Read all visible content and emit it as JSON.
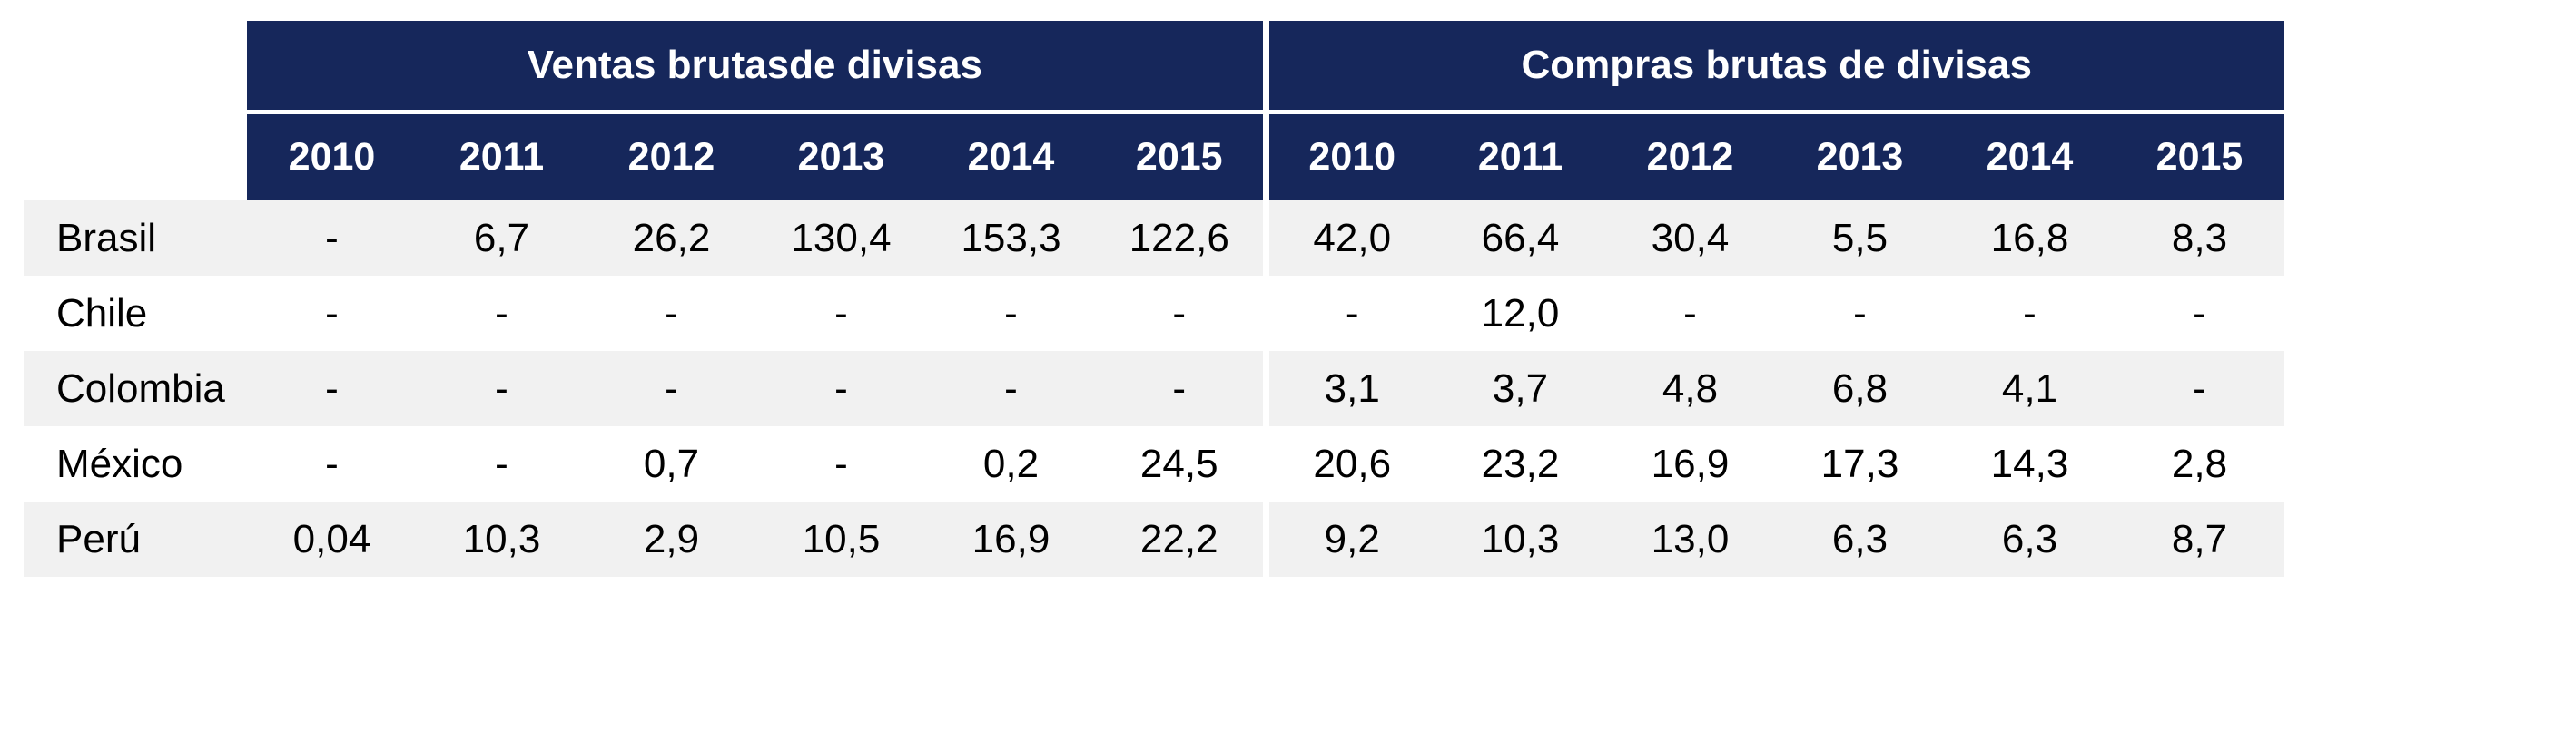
{
  "chart_data": {
    "type": "table",
    "groups": [
      {
        "label": "Ventas brutasde divisas",
        "years": [
          "2010",
          "2011",
          "2012",
          "2013",
          "2014",
          "2015"
        ]
      },
      {
        "label": "Compras brutas de divisas",
        "years": [
          "2010",
          "2011",
          "2012",
          "2013",
          "2014",
          "2015"
        ]
      }
    ],
    "rows": [
      {
        "country": "Brasil",
        "ventas": [
          "-",
          "6,7",
          "26,2",
          "130,4",
          "153,3",
          "122,6"
        ],
        "compras": [
          "42,0",
          "66,4",
          "30,4",
          "5,5",
          "16,8",
          "8,3"
        ]
      },
      {
        "country": "Chile",
        "ventas": [
          "-",
          "-",
          "-",
          "-",
          "-",
          "-"
        ],
        "compras": [
          "-",
          "12,0",
          "-",
          "-",
          "-",
          "-"
        ]
      },
      {
        "country": "Colombia",
        "ventas": [
          "-",
          "-",
          "-",
          "-",
          "-",
          "-"
        ],
        "compras": [
          "3,1",
          "3,7",
          "4,8",
          "6,8",
          "4,1",
          "-"
        ]
      },
      {
        "country": "México",
        "ventas": [
          "-",
          "-",
          "0,7",
          "-",
          "0,2",
          "24,5"
        ],
        "compras": [
          "20,6",
          "23,2",
          "16,9",
          "17,3",
          "14,3",
          "2,8"
        ]
      },
      {
        "country": "Perú",
        "ventas": [
          "0,04",
          "10,3",
          "2,9",
          "10,5",
          "16,9",
          "22,2"
        ],
        "compras": [
          "9,2",
          "10,3",
          "13,0",
          "6,3",
          "6,3",
          "8,7"
        ]
      }
    ],
    "colors": {
      "header_bg": "#16275B",
      "header_text": "#FFFFFF",
      "stripe_bg": "#F1F1F1",
      "body_text": "#000000",
      "page_bg": "#FFFFFF"
    }
  }
}
